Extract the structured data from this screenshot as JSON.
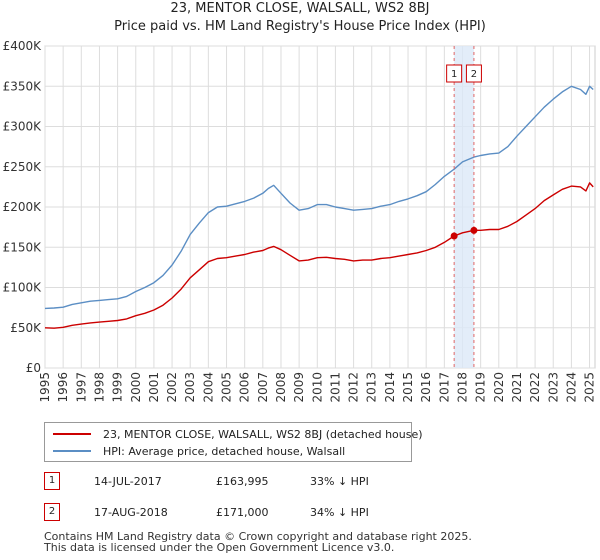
{
  "title": {
    "line1": "23, MENTOR CLOSE, WALSALL, WS2 8BJ",
    "line2": "Price paid vs. HM Land Registry's House Price Index (HPI)"
  },
  "chart_data": {
    "type": "line",
    "title": "23, MENTOR CLOSE, WALSALL, WS2 8BJ — Price paid vs. HM Land Registry's House Price Index (HPI)",
    "xlim": [
      1995,
      2025.3
    ],
    "ylim": [
      0,
      400000
    ],
    "x_ticks": [
      "1995",
      "1996",
      "1997",
      "1998",
      "1999",
      "2000",
      "2001",
      "2002",
      "2003",
      "2004",
      "2005",
      "2006",
      "2007",
      "2008",
      "2009",
      "2010",
      "2011",
      "2012",
      "2013",
      "2014",
      "2015",
      "2016",
      "2017",
      "2018",
      "2019",
      "2020",
      "2021",
      "2022",
      "2023",
      "2024",
      "2025"
    ],
    "y_ticks": [
      {
        "value": 0,
        "label": "£0"
      },
      {
        "value": 50000,
        "label": "£50K"
      },
      {
        "value": 100000,
        "label": "£100K"
      },
      {
        "value": 150000,
        "label": "£150K"
      },
      {
        "value": 200000,
        "label": "£200K"
      },
      {
        "value": 250000,
        "label": "£250K"
      },
      {
        "value": 300000,
        "label": "£300K"
      },
      {
        "value": 350000,
        "label": "£350K"
      },
      {
        "value": 400000,
        "label": "£400K"
      }
    ],
    "grid": true,
    "series": [
      {
        "name": "23, MENTOR CLOSE, WALSALL, WS2 8BJ (detached house)",
        "color": "#cc0000",
        "x": [
          1995.0,
          1995.5,
          1996.0,
          1996.5,
          1997.0,
          1997.5,
          1998.0,
          1998.5,
          1999.0,
          1999.5,
          2000.0,
          2000.5,
          2001.0,
          2001.5,
          2002.0,
          2002.5,
          2003.0,
          2003.5,
          2004.0,
          2004.5,
          2005.0,
          2005.5,
          2006.0,
          2006.5,
          2007.0,
          2007.3,
          2007.6,
          2008.0,
          2008.5,
          2009.0,
          2009.5,
          2010.0,
          2010.5,
          2011.0,
          2011.5,
          2012.0,
          2012.5,
          2013.0,
          2013.5,
          2014.0,
          2014.5,
          2015.0,
          2015.5,
          2016.0,
          2016.5,
          2017.0,
          2017.54,
          2018.0,
          2018.63,
          2019.0,
          2019.5,
          2020.0,
          2020.5,
          2021.0,
          2021.5,
          2022.0,
          2022.5,
          2023.0,
          2023.5,
          2024.0,
          2024.5,
          2024.8,
          2025.0,
          2025.2
        ],
        "values": [
          50000,
          49500,
          50500,
          53000,
          54500,
          56000,
          57000,
          58000,
          59000,
          61000,
          65000,
          68000,
          72000,
          78000,
          87000,
          98000,
          112000,
          122000,
          132000,
          136000,
          137000,
          139000,
          141000,
          144000,
          146000,
          149000,
          151000,
          147000,
          140000,
          133000,
          134000,
          137000,
          137500,
          136000,
          135000,
          133000,
          134000,
          134000,
          136000,
          137000,
          139000,
          141000,
          143000,
          146000,
          150000,
          156000,
          163995,
          168000,
          171000,
          171000,
          172000,
          172000,
          176000,
          182000,
          190000,
          198000,
          208000,
          215000,
          222000,
          226000,
          225000,
          220000,
          230000,
          225000
        ]
      },
      {
        "name": "HPI: Average price, detached house, Walsall",
        "color": "#5b8ec4",
        "x": [
          1995.0,
          1995.5,
          1996.0,
          1996.5,
          1997.0,
          1997.5,
          1998.0,
          1998.5,
          1999.0,
          1999.5,
          2000.0,
          2000.5,
          2001.0,
          2001.5,
          2002.0,
          2002.5,
          2003.0,
          2003.5,
          2004.0,
          2004.5,
          2005.0,
          2005.5,
          2006.0,
          2006.5,
          2007.0,
          2007.3,
          2007.6,
          2008.0,
          2008.5,
          2009.0,
          2009.5,
          2010.0,
          2010.5,
          2011.0,
          2011.5,
          2012.0,
          2012.5,
          2013.0,
          2013.5,
          2014.0,
          2014.5,
          2015.0,
          2015.5,
          2016.0,
          2016.5,
          2017.0,
          2017.54,
          2018.0,
          2018.63,
          2019.0,
          2019.5,
          2020.0,
          2020.5,
          2021.0,
          2021.5,
          2022.0,
          2022.5,
          2023.0,
          2023.5,
          2024.0,
          2024.5,
          2024.8,
          2025.0,
          2025.2
        ],
        "values": [
          74000,
          74500,
          75500,
          79000,
          81000,
          83000,
          84000,
          85000,
          86000,
          89000,
          95000,
          100000,
          106000,
          115000,
          128000,
          145000,
          166000,
          180000,
          193000,
          200000,
          201000,
          204000,
          207000,
          211000,
          217000,
          223000,
          227000,
          217000,
          205000,
          196000,
          198000,
          203000,
          203000,
          200000,
          198000,
          196000,
          197000,
          198000,
          201000,
          203000,
          207000,
          210000,
          214000,
          219000,
          228000,
          238000,
          247000,
          256000,
          262000,
          264000,
          266000,
          267000,
          275000,
          288000,
          300000,
          312000,
          324000,
          334000,
          343000,
          350000,
          346000,
          340000,
          350000,
          346000
        ]
      }
    ],
    "markers": [
      {
        "label": "1",
        "date": 2017.54,
        "price": 163995
      },
      {
        "label": "2",
        "date": 2018.63,
        "price": 171000
      }
    ]
  },
  "legend": {
    "items": [
      {
        "label": "23, MENTOR CLOSE, WALSALL, WS2 8BJ (detached house)",
        "color": "#cc0000"
      },
      {
        "label": "HPI: Average price, detached house, Walsall",
        "color": "#5b8ec4"
      }
    ]
  },
  "transactions": [
    {
      "num": "1",
      "date": "14-JUL-2017",
      "price": "£163,995",
      "hpi": "33% ↓ HPI"
    },
    {
      "num": "2",
      "date": "17-AUG-2018",
      "price": "£171,000",
      "hpi": "34% ↓ HPI"
    }
  ],
  "footer": {
    "line1": "Contains HM Land Registry data © Crown copyright and database right 2025.",
    "line2": "This data is licensed under the Open Government Licence v3.0."
  }
}
